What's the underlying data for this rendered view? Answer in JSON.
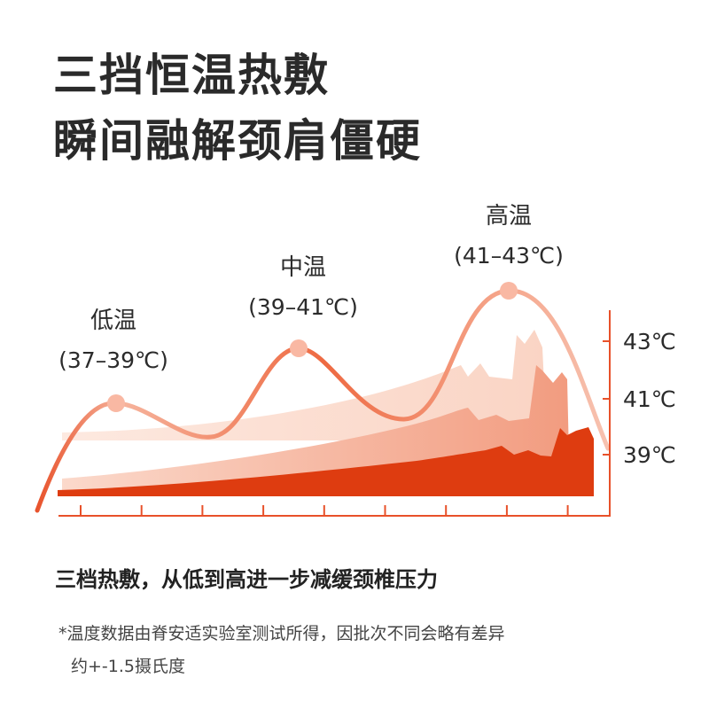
{
  "headline": {
    "line1": "三挡恒温热敷",
    "line2": "瞬间融解颈肩僵硬"
  },
  "subtitle": "三档热敷，从低到高进一步减缓颈椎压力",
  "footnote": {
    "line1": "*温度数据由脊安适实验室测试所得，因批次不同会略有差异",
    "line2": "约+-1.5摄氏度"
  },
  "colors": {
    "accent": "#e8512a",
    "deep": "#de3c10",
    "mid": "#f4a48b",
    "light": "#fbe0d4",
    "dot": "#f9b8a3"
  },
  "chart_data": {
    "type": "area",
    "title": "",
    "xlabel": "",
    "ylabel": "",
    "y_ticks": [
      "43℃",
      "41℃",
      "39℃"
    ],
    "levels": [
      {
        "name": "低温",
        "range": "(37–39℃)"
      },
      {
        "name": "中温",
        "range": "(39–41℃)"
      },
      {
        "name": "高温",
        "range": "(41–43℃)"
      }
    ],
    "x_tick_count": 9,
    "grid": false,
    "legend": "none"
  }
}
